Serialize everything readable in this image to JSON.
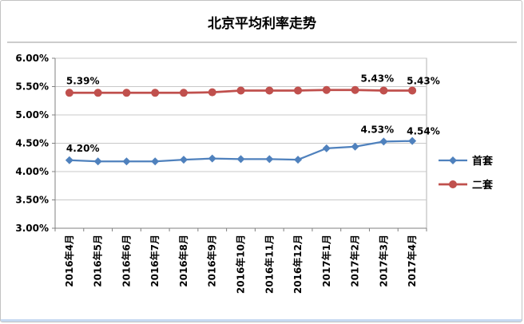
{
  "window": {
    "bottom_edge_color": "#c6d9f1"
  },
  "chart_data": {
    "type": "line",
    "title": "北京平均利率走势",
    "categories": [
      "2016年4月",
      "2016年5月",
      "2016年6月",
      "2016年7月",
      "2016年8月",
      "2016年9月",
      "2016年10月",
      "2016年11月",
      "2016年12月",
      "2017年1月",
      "2017年2月",
      "2017年3月",
      "2017年4月"
    ],
    "series": [
      {
        "name": "首套",
        "color": "#4F81BD",
        "marker": "diamond",
        "values": [
          4.2,
          4.18,
          4.18,
          4.18,
          4.21,
          4.23,
          4.22,
          4.22,
          4.21,
          4.41,
          4.44,
          4.53,
          4.54
        ],
        "point_labels": [
          {
            "index": 0,
            "text": "4.20%"
          },
          {
            "index": 11,
            "text": "4.53%"
          },
          {
            "index": 12,
            "text": "4.54%"
          }
        ]
      },
      {
        "name": "二套",
        "color": "#C0504D",
        "marker": "circle",
        "values": [
          5.39,
          5.39,
          5.39,
          5.39,
          5.39,
          5.4,
          5.43,
          5.43,
          5.43,
          5.44,
          5.44,
          5.43,
          5.43
        ],
        "point_labels": [
          {
            "index": 0,
            "text": "5.39%"
          },
          {
            "index": 11,
            "text": "5.43%"
          },
          {
            "index": 12,
            "text": "5.43%"
          }
        ]
      }
    ],
    "ylim": [
      3.0,
      6.0
    ],
    "ytick_step": 0.5,
    "ytick_labels": [
      "3.00%",
      "3.50%",
      "4.00%",
      "4.50%",
      "5.00%",
      "5.50%",
      "6.00%"
    ],
    "grid": true,
    "legend_position": "right",
    "colors": {
      "grid": "#C8C8C8",
      "axis": "#808080",
      "text": "#000000",
      "plot_border": "#B3B3B3",
      "title_divider": "#9A9A9A"
    }
  }
}
